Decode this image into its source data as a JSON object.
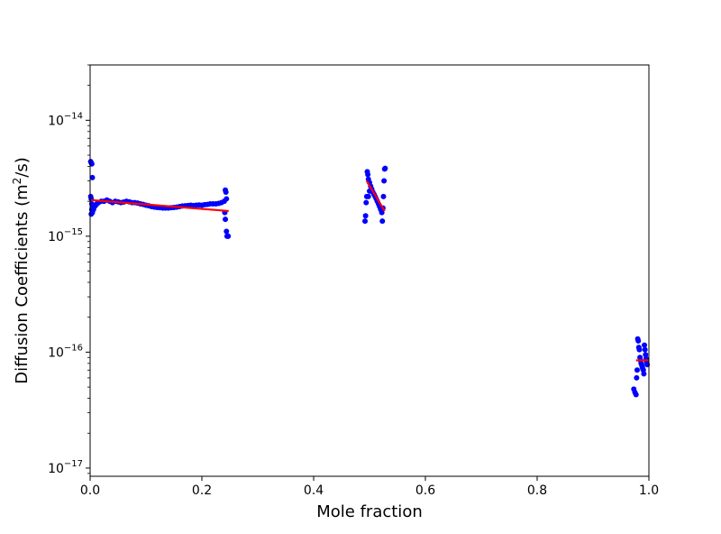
{
  "chart_data": {
    "type": "scatter",
    "title": "",
    "xlabel": "Mole fraction",
    "ylabel_prefix": "Diffusion Coefficients (m",
    "ylabel_sup": "2",
    "ylabel_suffix": "/s)",
    "xlim": [
      0.0,
      1.0
    ],
    "ylim": [
      8.5e-18,
      3e-14
    ],
    "yscale": "log",
    "grid": false,
    "xticks": [
      0.0,
      0.2,
      0.4,
      0.6,
      0.8,
      1.0
    ],
    "xtick_labels": [
      "0.0",
      "0.2",
      "0.4",
      "0.6",
      "0.8",
      "1.0"
    ],
    "yticks": [
      {
        "value": 1e-17,
        "base": "10",
        "exp": "−17"
      },
      {
        "value": 1e-16,
        "base": "10",
        "exp": "−16"
      },
      {
        "value": 1e-15,
        "base": "10",
        "exp": "−15"
      },
      {
        "value": 1e-14,
        "base": "10",
        "exp": "−14"
      }
    ],
    "series": [
      {
        "kind": "points",
        "color": "#0000ff",
        "points": [
          [
            0.001,
            4.4e-15
          ],
          [
            0.002,
            4.3e-15
          ],
          [
            0.003,
            4.2e-15
          ],
          [
            0.004,
            3.2e-15
          ],
          [
            0.001,
            2.2e-15
          ],
          [
            0.002,
            2.1e-15
          ],
          [
            0.003,
            1.9e-15
          ],
          [
            0.004,
            1.8e-15
          ],
          [
            0.003,
            1.7e-15
          ],
          [
            0.004,
            1.6e-15
          ],
          [
            0.002,
            1.55e-15
          ],
          [
            0.006,
            1.7e-15
          ],
          [
            0.008,
            1.8e-15
          ],
          [
            0.01,
            1.85e-15
          ],
          [
            0.012,
            1.9e-15
          ],
          [
            0.015,
            1.95e-15
          ],
          [
            0.02,
            2e-15
          ],
          [
            0.025,
            2e-15
          ],
          [
            0.03,
            2.05e-15
          ],
          [
            0.035,
            2e-15
          ],
          [
            0.04,
            1.95e-15
          ],
          [
            0.045,
            2e-15
          ],
          [
            0.05,
            1.98e-15
          ],
          [
            0.055,
            1.95e-15
          ],
          [
            0.06,
            1.97e-15
          ],
          [
            0.065,
            2e-15
          ],
          [
            0.07,
            1.98e-15
          ],
          [
            0.075,
            1.95e-15
          ],
          [
            0.08,
            1.95e-15
          ],
          [
            0.085,
            1.93e-15
          ],
          [
            0.09,
            1.9e-15
          ],
          [
            0.095,
            1.88e-15
          ],
          [
            0.1,
            1.85e-15
          ],
          [
            0.105,
            1.83e-15
          ],
          [
            0.11,
            1.8e-15
          ],
          [
            0.115,
            1.78e-15
          ],
          [
            0.12,
            1.77e-15
          ],
          [
            0.125,
            1.76e-15
          ],
          [
            0.13,
            1.75e-15
          ],
          [
            0.135,
            1.75e-15
          ],
          [
            0.14,
            1.75e-15
          ],
          [
            0.145,
            1.76e-15
          ],
          [
            0.15,
            1.77e-15
          ],
          [
            0.155,
            1.78e-15
          ],
          [
            0.16,
            1.8e-15
          ],
          [
            0.165,
            1.82e-15
          ],
          [
            0.17,
            1.83e-15
          ],
          [
            0.175,
            1.84e-15
          ],
          [
            0.18,
            1.85e-15
          ],
          [
            0.185,
            1.84e-15
          ],
          [
            0.19,
            1.85e-15
          ],
          [
            0.195,
            1.86e-15
          ],
          [
            0.2,
            1.85e-15
          ],
          [
            0.205,
            1.87e-15
          ],
          [
            0.21,
            1.88e-15
          ],
          [
            0.215,
            1.9e-15
          ],
          [
            0.22,
            1.9e-15
          ],
          [
            0.225,
            1.9e-15
          ],
          [
            0.23,
            1.92e-15
          ],
          [
            0.235,
            1.95e-15
          ],
          [
            0.24,
            2e-15
          ],
          [
            0.242,
            2.5e-15
          ],
          [
            0.243,
            2.4e-15
          ],
          [
            0.244,
            2.1e-15
          ],
          [
            0.241,
            1.6e-15
          ],
          [
            0.242,
            1.4e-15
          ],
          [
            0.244,
            1.1e-15
          ],
          [
            0.245,
            1e-15
          ],
          [
            0.247,
            1e-15
          ],
          [
            0.492,
            1.35e-15
          ],
          [
            0.493,
            1.5e-15
          ],
          [
            0.494,
            1.95e-15
          ],
          [
            0.495,
            2.2e-15
          ],
          [
            0.496,
            3.6e-15
          ],
          [
            0.497,
            3.4e-15
          ],
          [
            0.498,
            3.1e-15
          ],
          [
            0.5,
            2.9e-15
          ],
          [
            0.502,
            2.7e-15
          ],
          [
            0.504,
            2.55e-15
          ],
          [
            0.506,
            2.4e-15
          ],
          [
            0.508,
            2.3e-15
          ],
          [
            0.51,
            2.2e-15
          ],
          [
            0.512,
            2.1e-15
          ],
          [
            0.514,
            2e-15
          ],
          [
            0.516,
            1.9e-15
          ],
          [
            0.518,
            1.8e-15
          ],
          [
            0.52,
            1.7e-15
          ],
          [
            0.522,
            1.6e-15
          ],
          [
            0.524,
            1.75e-15
          ],
          [
            0.525,
            2.2e-15
          ],
          [
            0.526,
            3e-15
          ],
          [
            0.527,
            3.8e-15
          ],
          [
            0.528,
            3.85e-15
          ],
          [
            0.523,
            1.35e-15
          ],
          [
            0.498,
            2.2e-15
          ],
          [
            0.5,
            2.45e-15
          ],
          [
            0.973,
            4.8e-17
          ],
          [
            0.975,
            4.5e-17
          ],
          [
            0.977,
            4.3e-17
          ],
          [
            0.978,
            6e-17
          ],
          [
            0.979,
            7e-17
          ],
          [
            0.98,
            1.3e-16
          ],
          [
            0.981,
            1.25e-16
          ],
          [
            0.982,
            1.1e-16
          ],
          [
            0.983,
            1.05e-16
          ],
          [
            0.984,
            9e-17
          ],
          [
            0.985,
            8.5e-17
          ],
          [
            0.986,
            8e-17
          ],
          [
            0.987,
            7.8e-17
          ],
          [
            0.988,
            7.5e-17
          ],
          [
            0.989,
            7.2e-17
          ],
          [
            0.99,
            7e-17
          ],
          [
            0.991,
            6.5e-17
          ],
          [
            0.992,
            1.15e-16
          ],
          [
            0.993,
            1.05e-16
          ],
          [
            0.994,
            9.5e-17
          ],
          [
            0.995,
            8.8e-17
          ],
          [
            0.996,
            8.2e-17
          ],
          [
            0.997,
            7.8e-17
          ]
        ]
      },
      {
        "kind": "fit-lines",
        "color": "#ff0000",
        "segments": [
          [
            [
              0.002,
              2.05e-15
            ],
            [
              0.248,
              1.65e-15
            ]
          ],
          [
            [
              0.495,
              3e-15
            ],
            [
              0.527,
              1.65e-15
            ]
          ],
          [
            [
              0.977,
              8.5e-17
            ],
            [
              0.999,
              8.5e-17
            ]
          ]
        ]
      }
    ]
  }
}
